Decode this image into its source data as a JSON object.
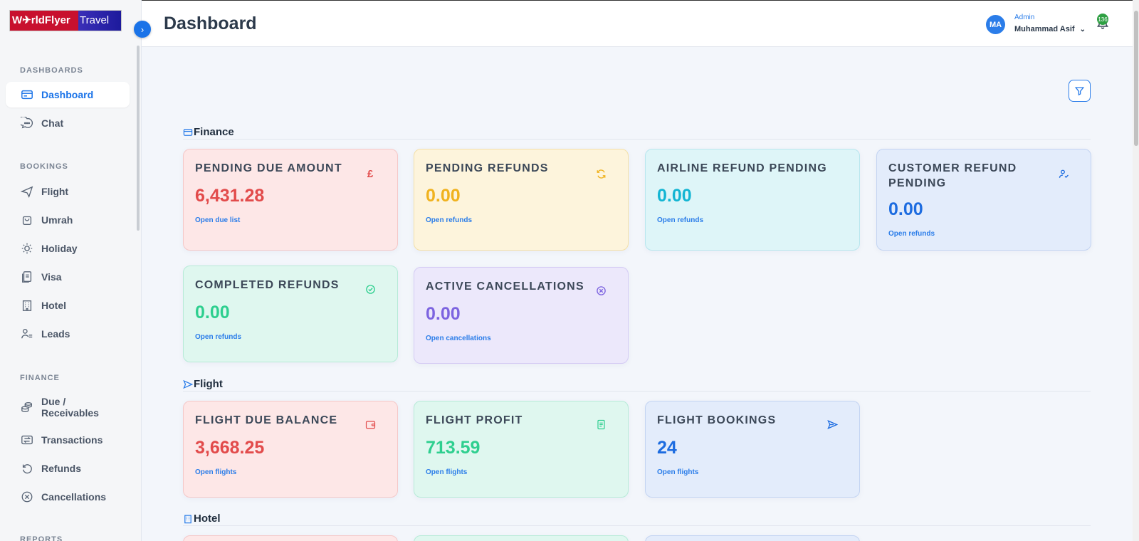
{
  "brand": {
    "logo_left": "W✈rldFlyer",
    "logo_right": "Travel"
  },
  "sidebar": {
    "sections": {
      "dashboards": "DASHBOARDS",
      "bookings": "BOOKINGS",
      "finance": "FINANCE",
      "reports": "REPORTS"
    },
    "items": {
      "dashboard": "Dashboard",
      "chat": "Chat",
      "flight": "Flight",
      "umrah": "Umrah",
      "holiday": "Holiday",
      "visa": "Visa",
      "hotel": "Hotel",
      "leads": "Leads",
      "due_receivables": "Due / Receivables",
      "transactions": "Transactions",
      "refunds": "Refunds",
      "cancellations": "Cancellations"
    }
  },
  "header": {
    "title": "Dashboard",
    "user_initials": "MA",
    "user_role": "Admin",
    "user_name": "Muhammad Asif",
    "notification_count": "136"
  },
  "groups": {
    "finance": "Finance",
    "flight": "Flight",
    "hotel": "Hotel"
  },
  "finance_cards": [
    {
      "title": "PENDING DUE AMOUNT",
      "value": "6,431.28",
      "link": "Open due list",
      "icon": "pound-icon"
    },
    {
      "title": "PENDING REFUNDS",
      "value": "0.00",
      "link": "Open refunds",
      "icon": "refresh-icon"
    },
    {
      "title": "AIRLINE REFUND PENDING",
      "value": "0.00",
      "link": "Open refunds",
      "icon": "none"
    },
    {
      "title": "CUSTOMER REFUND PENDING",
      "value": "0.00",
      "link": "Open refunds",
      "icon": "user-check-icon"
    },
    {
      "title": "COMPLETED REFUNDS",
      "value": "0.00",
      "link": "Open refunds",
      "icon": "check-circle-icon"
    },
    {
      "title": "ACTIVE CANCELLATIONS",
      "value": "0.00",
      "link": "Open cancellations",
      "icon": "x-circle-icon"
    }
  ],
  "flight_cards": [
    {
      "title": "FLIGHT DUE BALANCE",
      "value": "3,668.25",
      "link": "Open flights",
      "icon": "wallet-icon"
    },
    {
      "title": "FLIGHT PROFIT",
      "value": "713.59",
      "link": "Open flights",
      "icon": "receipt-icon"
    },
    {
      "title": "FLIGHT BOOKINGS",
      "value": "24",
      "link": "Open flights",
      "icon": "send-icon"
    }
  ],
  "colors": {
    "accent": "#1a73e8",
    "red": "#e24b4b",
    "yellow": "#f0b21e",
    "cyan": "#13b5d3",
    "blue": "#1d6ce0",
    "green": "#2ecf8f",
    "purple": "#7d64e0"
  }
}
